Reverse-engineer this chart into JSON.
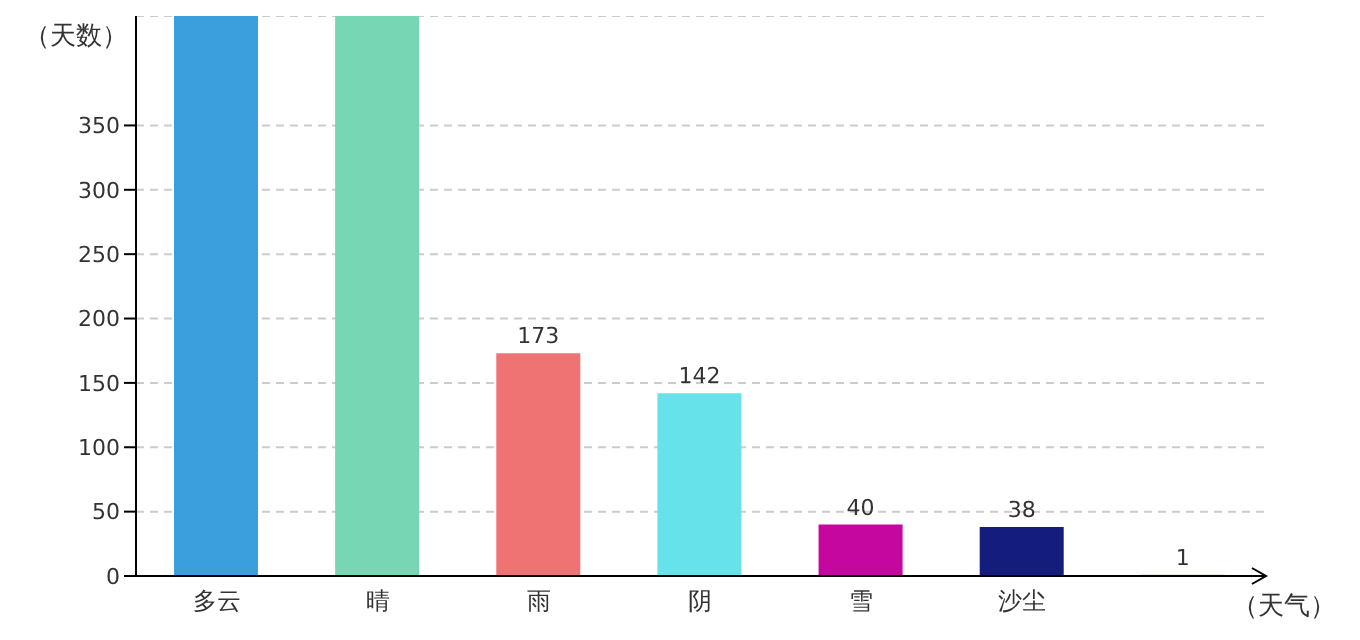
{
  "chart_data": {
    "type": "bar",
    "xlabel": "（天气）",
    "ylabel": "（天数）",
    "categories": [
      "多云",
      "晴",
      "雨",
      "阴",
      "雪",
      "沙尘",
      null
    ],
    "values": [
      435,
      435,
      173,
      142,
      40,
      38,
      1
    ],
    "colors": [
      "#3a9fdc",
      "#77d6b4",
      "#ef7373",
      "#66e2ea",
      "#c5069f",
      "#141d7b",
      "#6cc24a"
    ],
    "value_labels": [
      null,
      null,
      "173",
      "142",
      "40",
      "38",
      "1"
    ],
    "ylim": [
      0,
      435
    ],
    "yticks": [
      0,
      50,
      100,
      150,
      200,
      250,
      300,
      350
    ],
    "grid": "y"
  }
}
